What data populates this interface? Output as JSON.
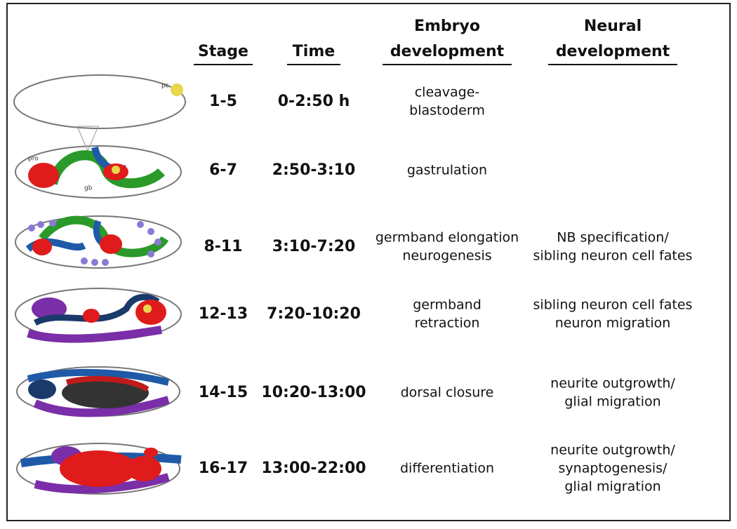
{
  "header": {
    "stage": "Stage",
    "time": "Time",
    "embryo": [
      "Embryo",
      "development"
    ],
    "neural": [
      "Neural",
      "development"
    ]
  },
  "embryo_labels": {
    "pc": "pc",
    "pro": "pro",
    "gb": "gb"
  },
  "rows": [
    {
      "stage": "1-5",
      "time": "0-2:50 h",
      "embryo": [
        "cleavage-",
        "blastoderm"
      ]
    },
    {
      "stage": "6-7",
      "time": "2:50-3:10",
      "embryo": [
        "gastrulation"
      ]
    },
    {
      "stage": "8-11",
      "time": "3:10-7:20",
      "embryo": [
        "germband elongation",
        "neurogenesis"
      ],
      "neural": [
        "NB specification/",
        "sibling neuron cell fates"
      ]
    },
    {
      "stage": "12-13",
      "time": "7:20-10:20",
      "embryo": [
        "germband",
        "retraction"
      ],
      "neural": [
        "sibling neuron cell fates",
        "neuron migration"
      ]
    },
    {
      "stage": "14-15",
      "time": "10:20-13:00",
      "embryo": [
        "dorsal closure"
      ],
      "neural": [
        "neurite outgrowth/",
        "glial migration"
      ]
    },
    {
      "stage": "16-17",
      "time": "13:00-22:00",
      "embryo": [
        "differentiation"
      ],
      "neural": [
        "neurite outgrowth/",
        "synaptogenesis/",
        "glial migration"
      ]
    }
  ]
}
